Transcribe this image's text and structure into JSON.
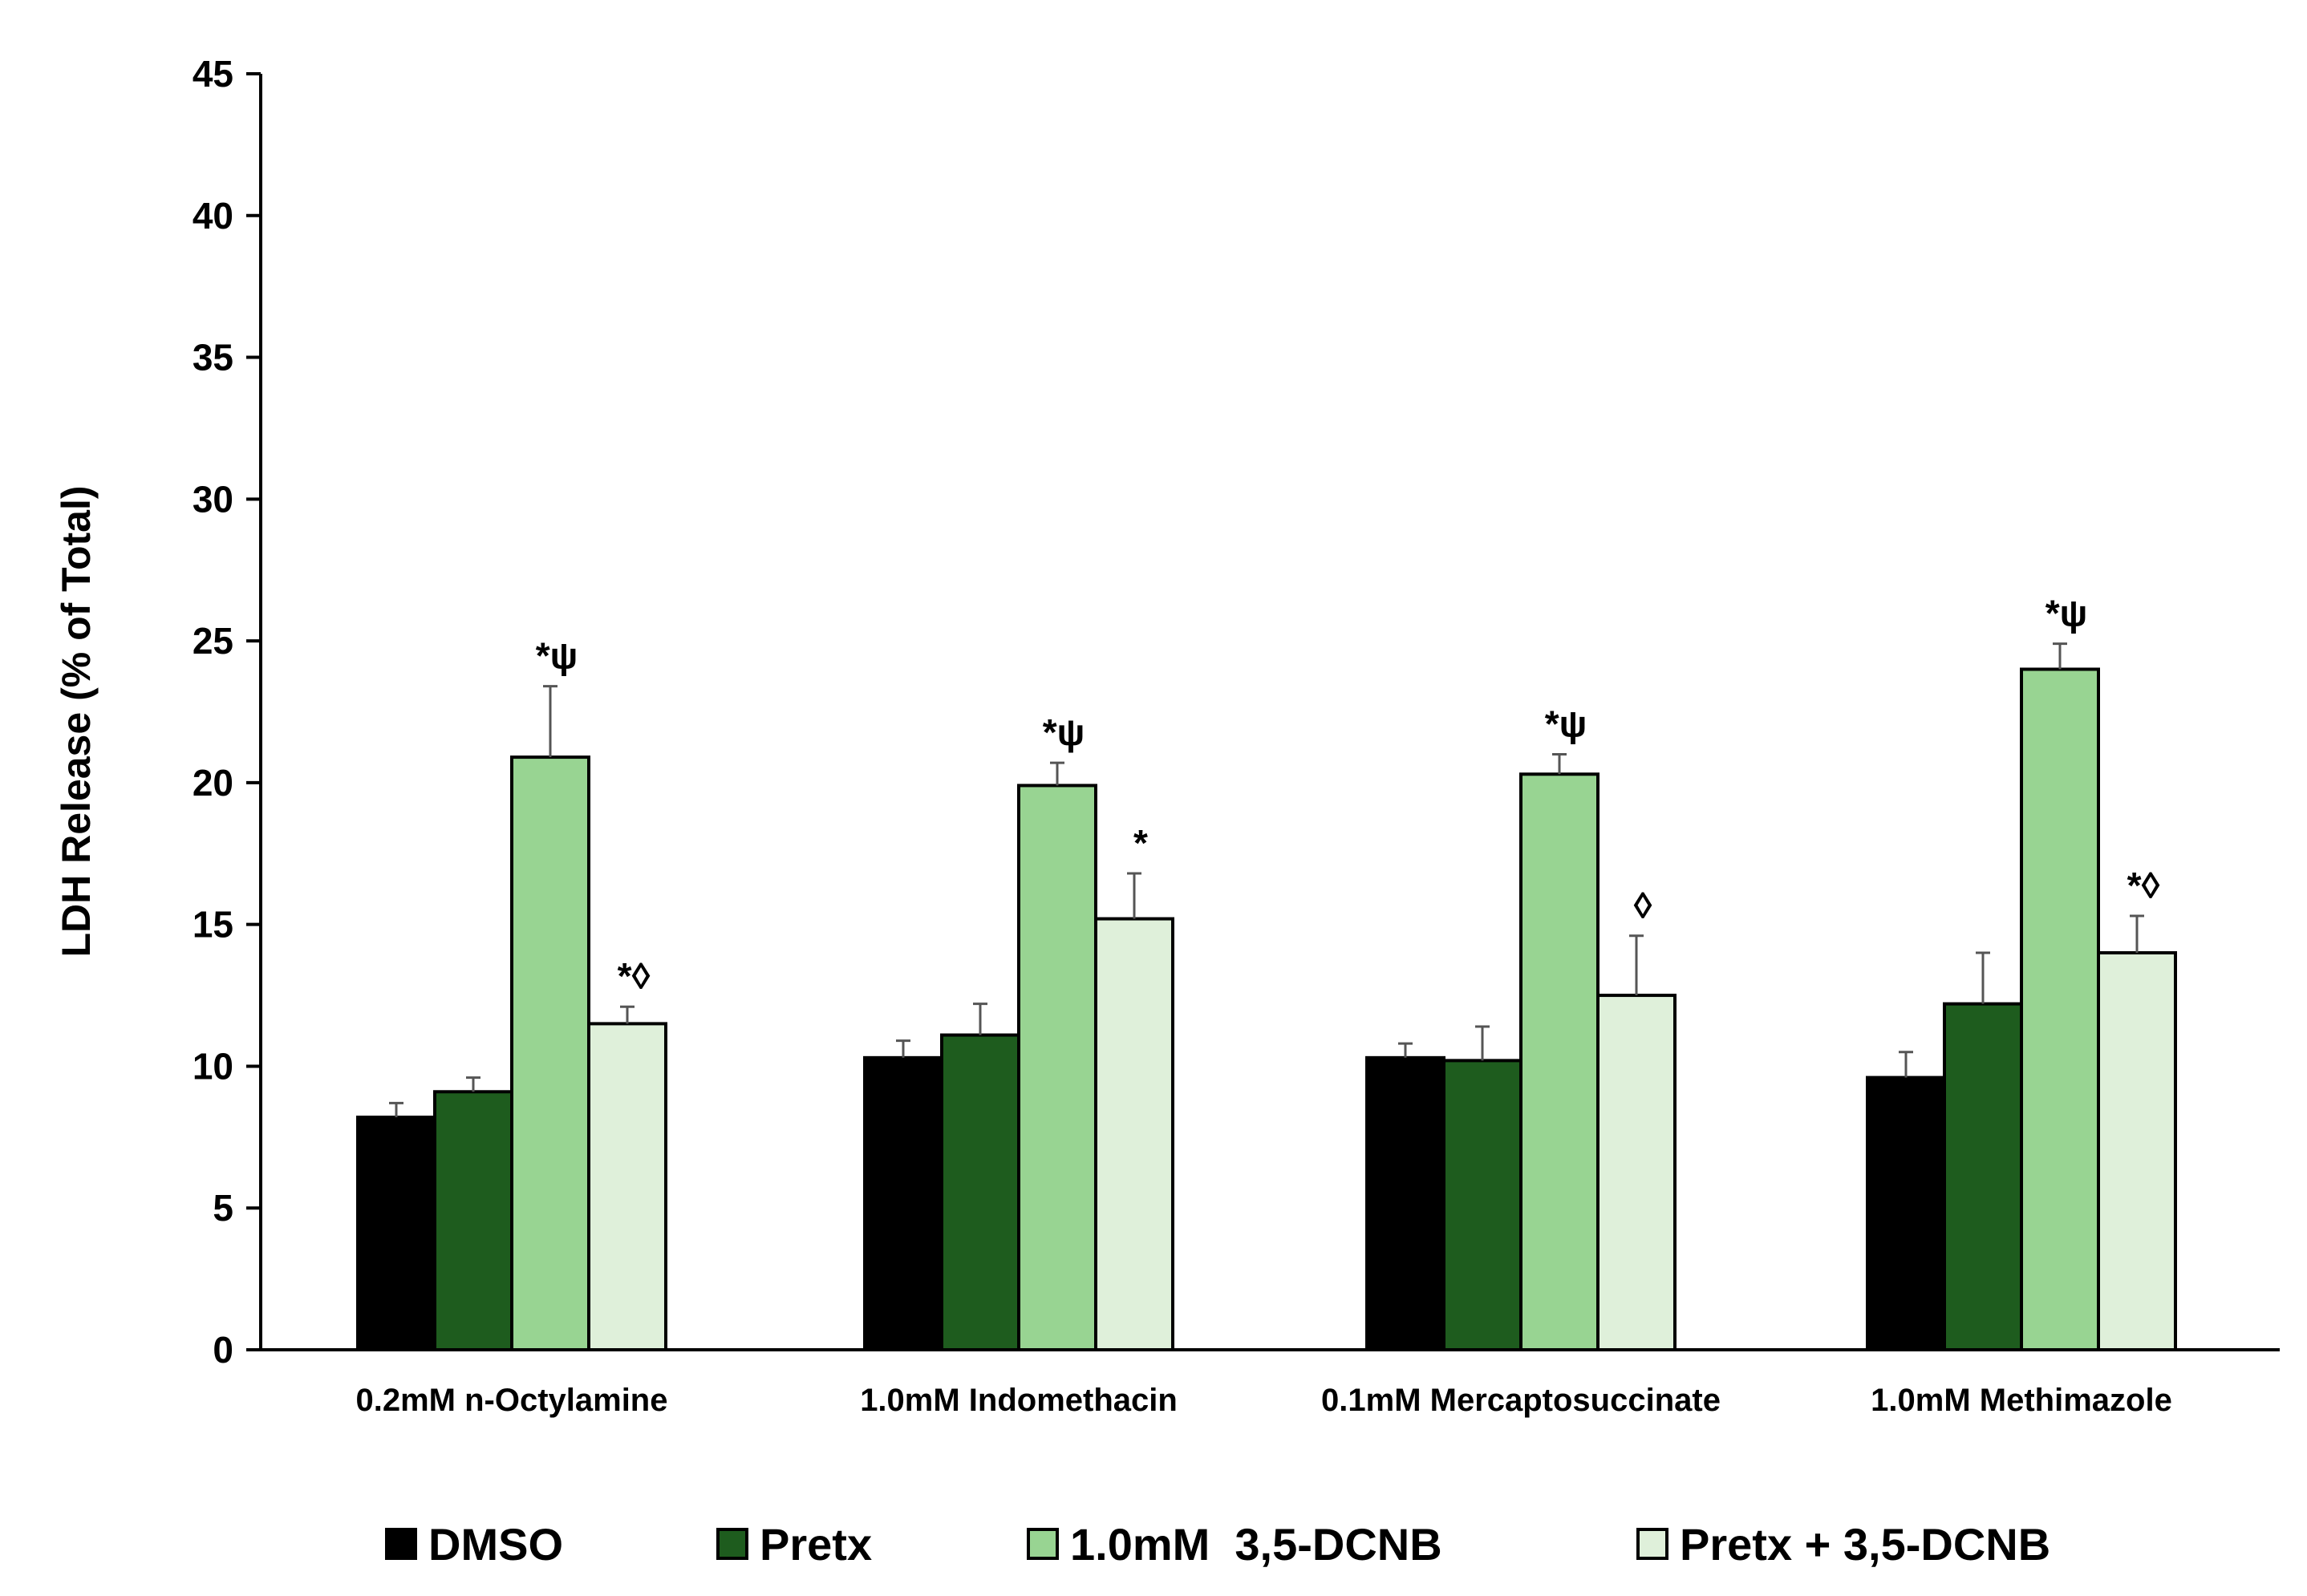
{
  "chart_data": {
    "type": "bar",
    "title": "",
    "xlabel": "",
    "ylabel": "LDH Release (% of Total)",
    "ylim": [
      0,
      45
    ],
    "yticks": [
      0,
      5,
      10,
      15,
      20,
      25,
      30,
      35,
      40,
      45
    ],
    "grid": false,
    "legend_position": "bottom",
    "categories": [
      "0.2mM n-Octylamine",
      "1.0mM Indomethacin",
      "0.1mM Mercaptosuccinate",
      "1.0mM Methimazole"
    ],
    "series": [
      {
        "name": "DMSO",
        "color": "#000000",
        "values": [
          8.2,
          10.3,
          10.3,
          9.6
        ],
        "errors": [
          0.5,
          0.6,
          0.5,
          0.9
        ],
        "annotations": [
          "",
          "",
          "",
          ""
        ]
      },
      {
        "name": "Pretx",
        "color": "#1e5c1e",
        "values": [
          9.1,
          11.1,
          10.2,
          12.2
        ],
        "errors": [
          0.5,
          1.1,
          1.2,
          1.8
        ],
        "annotations": [
          "",
          "",
          "",
          ""
        ]
      },
      {
        "name": "1.0mM  3,5-DCNB",
        "color": "#98d492",
        "values": [
          20.9,
          19.9,
          20.3,
          24.0
        ],
        "errors": [
          2.5,
          0.8,
          0.7,
          0.9
        ],
        "annotations": [
          "*ψ",
          "*ψ",
          "*ψ",
          "*ψ"
        ]
      },
      {
        "name": "Pretx + 3,5-DCNB",
        "color": "#dff0da",
        "values": [
          11.5,
          15.2,
          12.5,
          14.0
        ],
        "errors": [
          0.6,
          1.6,
          2.1,
          1.3
        ],
        "annotations": [
          "*◊",
          "*",
          "◊",
          "*◊"
        ]
      }
    ]
  }
}
